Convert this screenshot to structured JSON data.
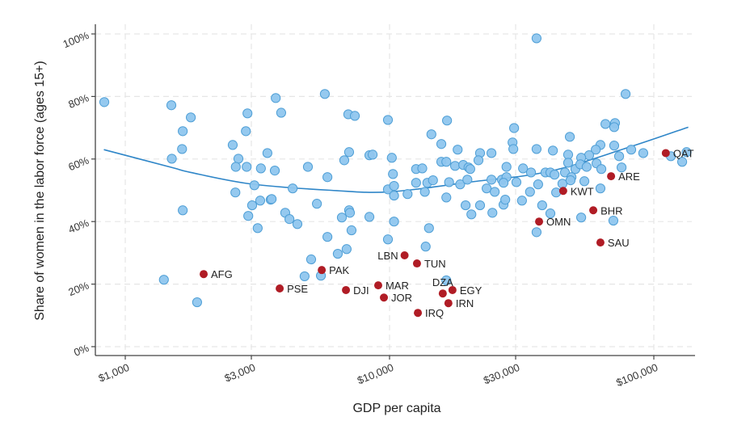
{
  "chart_data": {
    "type": "scatter",
    "xlabel": "GDP per capita",
    "ylabel": "Share of women in the labor force (ages 15+)",
    "x_scale": "log",
    "xlim": [
      780,
      150000
    ],
    "ylim": [
      0,
      100
    ],
    "x_ticks": [
      1000,
      3000,
      10000,
      30000,
      100000
    ],
    "x_tick_labels": [
      "$1,000",
      "$3,000",
      "$10,000",
      "$30,000",
      "$100,000"
    ],
    "y_ticks": [
      0,
      20,
      40,
      60,
      80,
      100
    ],
    "y_tick_labels": [
      "0%",
      "20%",
      "40%",
      "60%",
      "80%",
      "100%"
    ],
    "grid": true,
    "colors": {
      "points": "#8fc6ee",
      "point_outline": "#4f9fd6",
      "highlight": "#b01c25",
      "trend": "#2f86c8"
    },
    "points": [
      [
        833,
        78.2
      ],
      [
        1494,
        77.2
      ],
      [
        1770,
        73.3
      ],
      [
        1650,
        68.9
      ],
      [
        1640,
        63.2
      ],
      [
        1500,
        60.1
      ],
      [
        1650,
        43.6
      ],
      [
        2550,
        64.5
      ],
      [
        2900,
        74.6
      ],
      [
        2860,
        68.9
      ],
      [
        3450,
        61.9
      ],
      [
        2680,
        60.1
      ],
      [
        2620,
        57.5
      ],
      [
        2880,
        57.5
      ],
      [
        3260,
        57.0
      ],
      [
        3680,
        56.3
      ],
      [
        3080,
        51.6
      ],
      [
        2610,
        49.3
      ],
      [
        3550,
        47.0
      ],
      [
        3240,
        46.7
      ],
      [
        3020,
        45.2
      ],
      [
        2920,
        41.8
      ],
      [
        3170,
        37.9
      ],
      [
        1400,
        21.4
      ],
      [
        1870,
        14.2
      ],
      [
        3710,
        79.5
      ],
      [
        3890,
        74.8
      ],
      [
        5690,
        80.8
      ],
      [
        6980,
        74.3
      ],
      [
        7390,
        73.8
      ],
      [
        8390,
        61.2
      ],
      [
        7030,
        62.2
      ],
      [
        6740,
        59.6
      ],
      [
        4910,
        57.5
      ],
      [
        5820,
        54.2
      ],
      [
        4300,
        50.6
      ],
      [
        5310,
        45.7
      ],
      [
        4030,
        42.8
      ],
      [
        4180,
        40.8
      ],
      [
        4480,
        39.2
      ],
      [
        6600,
        41.3
      ],
      [
        7030,
        43.6
      ],
      [
        7080,
        42.8
      ],
      [
        7180,
        37.2
      ],
      [
        5820,
        35.1
      ],
      [
        8390,
        41.5
      ],
      [
        3580,
        47.2
      ],
      [
        9860,
        72.5
      ],
      [
        16500,
        72.3
      ],
      [
        14400,
        67.9
      ],
      [
        15700,
        64.8
      ],
      [
        8630,
        61.4
      ],
      [
        10200,
        60.4
      ],
      [
        10300,
        55.2
      ],
      [
        12600,
        56.8
      ],
      [
        13300,
        57.0
      ],
      [
        15700,
        59.1
      ],
      [
        16400,
        59.1
      ],
      [
        9860,
        50.3
      ],
      [
        10400,
        51.4
      ],
      [
        10400,
        48.3
      ],
      [
        11700,
        48.8
      ],
      [
        12600,
        52.4
      ],
      [
        13900,
        52.4
      ],
      [
        14600,
        53.2
      ],
      [
        13600,
        49.5
      ],
      [
        16400,
        47.7
      ],
      [
        16800,
        52.6
      ],
      [
        10400,
        40.0
      ],
      [
        9860,
        34.3
      ],
      [
        14100,
        37.9
      ],
      [
        13700,
        32.0
      ],
      [
        6880,
        31.2
      ],
      [
        6370,
        29.7
      ],
      [
        5050,
        27.9
      ],
      [
        4770,
        22.5
      ],
      [
        5500,
        22.7
      ],
      [
        16400,
        21.2
      ],
      [
        36000,
        98.6
      ],
      [
        78200,
        80.8
      ],
      [
        29600,
        69.9
      ],
      [
        48100,
        67.1
      ],
      [
        65600,
        71.2
      ],
      [
        71300,
        71.5
      ],
      [
        70800,
        70.2
      ],
      [
        18100,
        63.0
      ],
      [
        22000,
        61.9
      ],
      [
        24300,
        61.9
      ],
      [
        29200,
        65.3
      ],
      [
        29400,
        63.2
      ],
      [
        36000,
        63.2
      ],
      [
        41500,
        62.7
      ],
      [
        47400,
        61.4
      ],
      [
        62800,
        64.5
      ],
      [
        70800,
        64.3
      ],
      [
        82100,
        63.0
      ],
      [
        91200,
        61.9
      ],
      [
        60300,
        63.0
      ],
      [
        56900,
        61.2
      ],
      [
        53100,
        60.4
      ],
      [
        73900,
        60.9
      ],
      [
        17700,
        57.8
      ],
      [
        19000,
        58.1
      ],
      [
        19900,
        57.3
      ],
      [
        20200,
        56.8
      ],
      [
        21700,
        59.6
      ],
      [
        27700,
        57.5
      ],
      [
        32000,
        57.0
      ],
      [
        34300,
        55.7
      ],
      [
        38900,
        55.7
      ],
      [
        40600,
        55.7
      ],
      [
        42100,
        55.0
      ],
      [
        46100,
        55.7
      ],
      [
        47400,
        58.8
      ],
      [
        50500,
        56.8
      ],
      [
        52700,
        58.3
      ],
      [
        55700,
        57.5
      ],
      [
        60700,
        58.6
      ],
      [
        63300,
        56.8
      ],
      [
        75500,
        57.3
      ],
      [
        18500,
        51.9
      ],
      [
        19700,
        53.4
      ],
      [
        24300,
        53.4
      ],
      [
        26600,
        53.4
      ],
      [
        27700,
        54.2
      ],
      [
        27000,
        52.4
      ],
      [
        30200,
        52.6
      ],
      [
        23300,
        50.6
      ],
      [
        25000,
        49.5
      ],
      [
        34000,
        49.5
      ],
      [
        36500,
        51.9
      ],
      [
        42700,
        49.3
      ],
      [
        45100,
        52.1
      ],
      [
        48800,
        54.2
      ],
      [
        48400,
        53.2
      ],
      [
        54600,
        52.9
      ],
      [
        62800,
        50.6
      ],
      [
        19400,
        45.2
      ],
      [
        22000,
        45.2
      ],
      [
        20400,
        42.3
      ],
      [
        24500,
        42.8
      ],
      [
        27000,
        45.4
      ],
      [
        27400,
        47.0
      ],
      [
        31700,
        46.7
      ],
      [
        37800,
        45.2
      ],
      [
        40600,
        42.6
      ],
      [
        53100,
        41.3
      ],
      [
        70300,
        40.3
      ],
      [
        36000,
        36.6
      ],
      [
        116000,
        60.9
      ],
      [
        128000,
        59.1
      ],
      [
        133000,
        62.2
      ]
    ],
    "highlighted": [
      {
        "label": "AFG",
        "x": 1980,
        "y": 23.2
      },
      {
        "label": "PAK",
        "x": 5540,
        "y": 24.5
      },
      {
        "label": "PSE",
        "x": 3840,
        "y": 18.6
      },
      {
        "label": "DJI",
        "x": 6840,
        "y": 18.1
      },
      {
        "label": "MAR",
        "x": 9060,
        "y": 19.6
      },
      {
        "label": "JOR",
        "x": 9520,
        "y": 15.7
      },
      {
        "label": "LBN",
        "x": 11400,
        "y": 29.2
      },
      {
        "label": "TUN",
        "x": 12700,
        "y": 26.6
      },
      {
        "label": "IRQ",
        "x": 12800,
        "y": 10.8
      },
      {
        "label": "DZA",
        "x": 15900,
        "y": 17.0
      },
      {
        "label": "EGY",
        "x": 17300,
        "y": 18.1
      },
      {
        "label": "IRN",
        "x": 16700,
        "y": 13.9
      },
      {
        "label": "OMN",
        "x": 36800,
        "y": 40.0
      },
      {
        "label": "KWT",
        "x": 45400,
        "y": 49.8
      },
      {
        "label": "ARE",
        "x": 68900,
        "y": 54.5
      },
      {
        "label": "BHR",
        "x": 59000,
        "y": 43.6
      },
      {
        "label": "SAU",
        "x": 62800,
        "y": 33.3
      },
      {
        "label": "QAT",
        "x": 111000,
        "y": 61.9
      }
    ],
    "trend": [
      [
        830,
        63
      ],
      [
        1500,
        57.3
      ],
      [
        1770,
        55.7
      ],
      [
        3000,
        52
      ],
      [
        6000,
        50
      ],
      [
        10000,
        49.5
      ],
      [
        20000,
        52.6
      ],
      [
        40000,
        56
      ],
      [
        80000,
        63.7
      ],
      [
        135000,
        70.2
      ]
    ]
  }
}
